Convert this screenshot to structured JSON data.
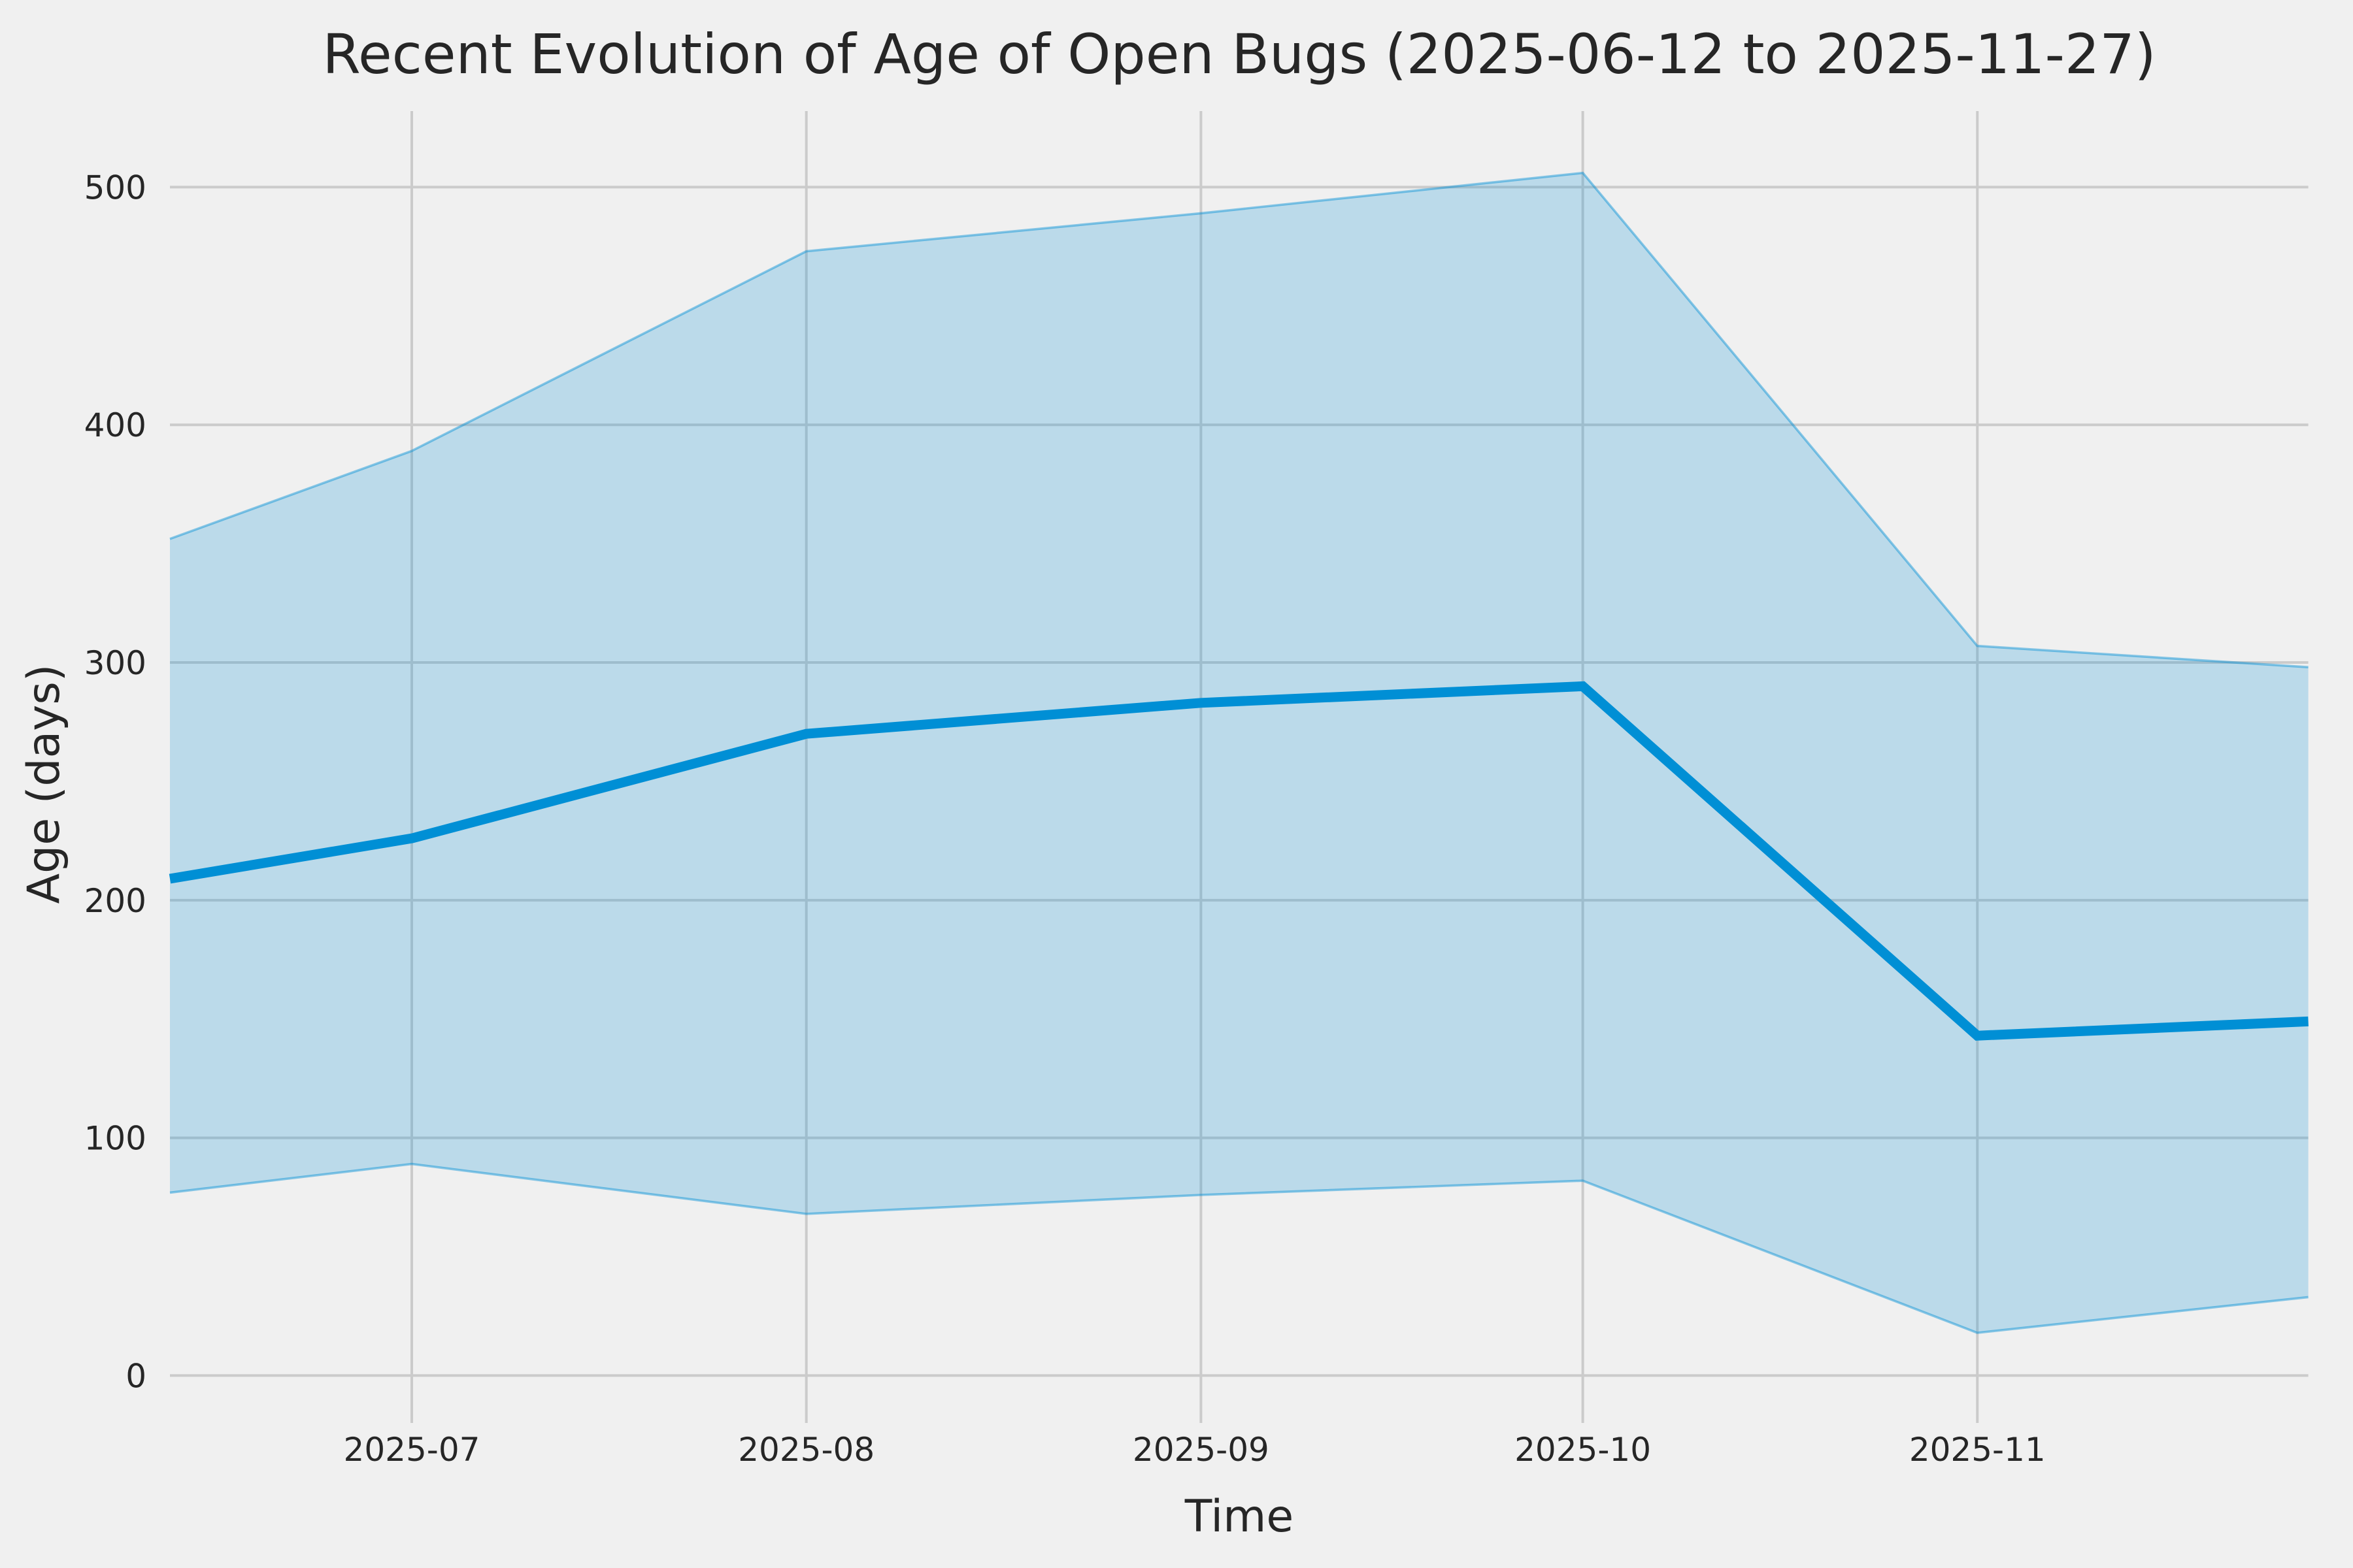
{
  "chart_data": {
    "type": "line",
    "title": "Recent Evolution of Age of Open Bugs (2025-06-12 to 2025-11-27)",
    "xlabel": "Time",
    "ylabel": "Age (days)",
    "x_dates": [
      "2025-06-12",
      "2025-07-01",
      "2025-08-01",
      "2025-09-01",
      "2025-10-01",
      "2025-11-01",
      "2025-11-27"
    ],
    "x_days_from_start": [
      0,
      19,
      50,
      81,
      111,
      142,
      168
    ],
    "series": [
      {
        "name": "median_age_days",
        "role": "line",
        "values": [
          209,
          226,
          270,
          283,
          290,
          143,
          149
        ]
      },
      {
        "name": "age_band_upper",
        "role": "band-upper",
        "values": [
          352,
          389,
          473,
          489,
          506,
          307,
          298
        ]
      },
      {
        "name": "age_band_lower",
        "role": "band-lower",
        "values": [
          77,
          89,
          68,
          76,
          82,
          18,
          33
        ]
      }
    ],
    "xticks": [
      {
        "label": "2025-07",
        "day": 19
      },
      {
        "label": "2025-08",
        "day": 50
      },
      {
        "label": "2025-09",
        "day": 81
      },
      {
        "label": "2025-10",
        "day": 111
      },
      {
        "label": "2025-11",
        "day": 142
      }
    ],
    "yticks": [
      0,
      100,
      200,
      300,
      400,
      500
    ],
    "xlim_days": [
      0,
      168
    ],
    "ylim": [
      -15,
      532
    ],
    "grid": true,
    "legend": false,
    "colors": {
      "background": "#f0f0f0",
      "grid": "#cbcbcb",
      "line": "#008fd5",
      "band_fill": "#008fd5",
      "text": "#262626"
    },
    "band_fill_opacity": 0.22
  }
}
